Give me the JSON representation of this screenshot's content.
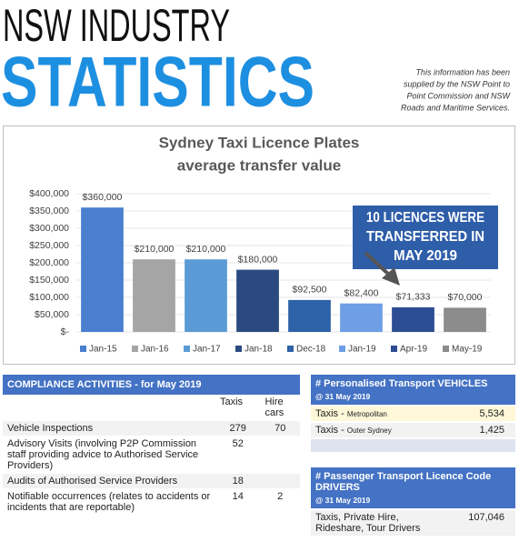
{
  "header": {
    "line1": "NSW INDUSTRY",
    "line2": "STATISTICS",
    "note": [
      "This information has been",
      "supplied by the NSW Point to",
      "Point Commission and NSW",
      "Roads and Maritime Services."
    ]
  },
  "chart_data": {
    "type": "bar",
    "title": [
      "Sydney Taxi Licence Plates",
      "average transfer value"
    ],
    "categories": [
      "Jan-15",
      "Jan-16",
      "Jan-17",
      "Jan-18",
      "Dec-18",
      "Jan-19",
      "Apr-19",
      "May-19"
    ],
    "values": [
      360000,
      210000,
      210000,
      180000,
      92500,
      82400,
      71333,
      70000
    ],
    "value_labels": [
      "$360,000",
      "$210,000",
      "$210,000",
      "$180,000",
      "$92,500",
      "$82,400",
      "$71,333",
      "$70,000"
    ],
    "colors": [
      "#4a7fd0",
      "#a5a5a5",
      "#5b9bd5",
      "#2a4a80",
      "#2e62a8",
      "#6d9ee6",
      "#2c4c94",
      "#8c8c8c"
    ],
    "ylim": [
      0,
      400000
    ],
    "yticks": [
      {
        "value": 0,
        "label": "$-"
      },
      {
        "value": 50000,
        "label": "$50,000"
      },
      {
        "value": 100000,
        "label": "$100,000"
      },
      {
        "value": 150000,
        "label": "$150,000"
      },
      {
        "value": 200000,
        "label": "$200,000"
      },
      {
        "value": 250000,
        "label": "$250,000"
      },
      {
        "value": 300000,
        "label": "$300,000"
      },
      {
        "value": 350000,
        "label": "$350,000"
      },
      {
        "value": 400000,
        "label": "$400,000"
      }
    ],
    "grid": true,
    "legend": "bottom",
    "annotation": [
      "10 LICENCES WERE",
      "TRANSFERRED IN",
      "MAY 2019"
    ]
  },
  "compliance": {
    "title": "COMPLIANCE ACTIVITIES - for May 2019",
    "columns": [
      "Taxis",
      "Hire cars"
    ],
    "rows": [
      [
        "Vehicle Inspections",
        "279",
        "70"
      ],
      [
        "Advisory Visits (involving P2P Commission staff providing advice to Authorised Service Providers)",
        "52",
        null
      ],
      [
        "Audits of Authorised Service Providers",
        "18",
        null
      ],
      [
        "Notifiable occurrences (relates to accidents or incidents that are reportable)",
        "14",
        "2"
      ]
    ]
  },
  "vehicles": {
    "title": "# Personalised Transport VEHICLES",
    "date": "@ 31 May 2019",
    "rows": [
      {
        "label": "Taxis -",
        "detail": "Metropolitan",
        "value": "5,534"
      },
      {
        "label": "Taxis -",
        "detail": "Outer Sydney",
        "value": "1,425"
      }
    ]
  },
  "drivers": {
    "title": "# Passenger Transport Licence Code DRIVERS",
    "date": "@ 31 May 2019",
    "rows": [
      {
        "label": "Taxis, Private Hire, Rideshare, Tour Drivers",
        "value": "107,046"
      }
    ]
  }
}
